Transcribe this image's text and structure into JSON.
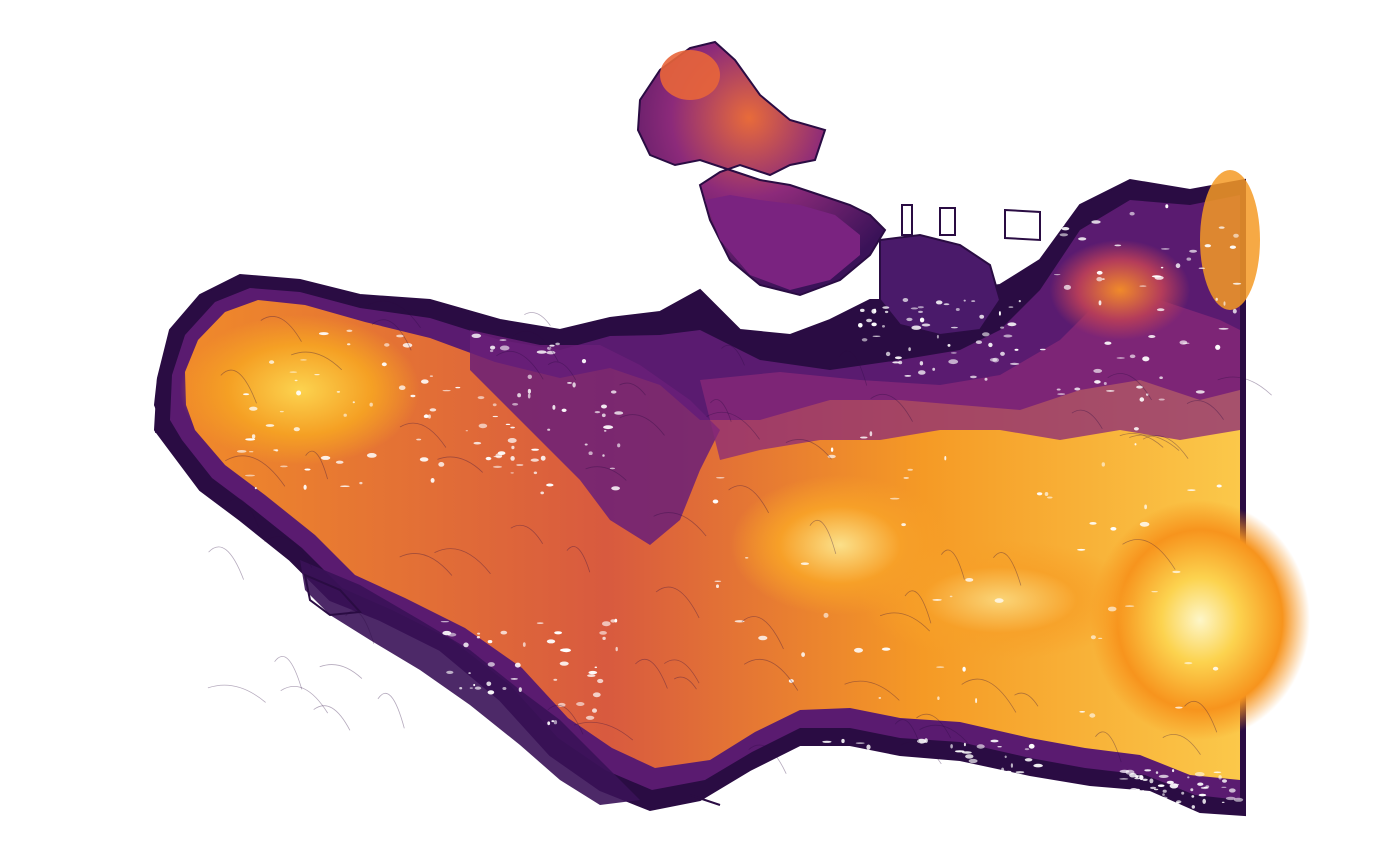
{
  "map": {
    "type": "filled-contour-elevation",
    "colormap": "inferno",
    "palette": {
      "lowest": "#2a0c43",
      "low": "#4a1a6a",
      "mid_low": "#7a2380",
      "mid": "#b0305f",
      "mid_high": "#e2543a",
      "high": "#f98c1c",
      "higher": "#fbb31c",
      "highest": "#fcf1a8"
    },
    "background": "#ffffff",
    "axes_visible": false,
    "legend_visible": false,
    "text_labels": []
  }
}
